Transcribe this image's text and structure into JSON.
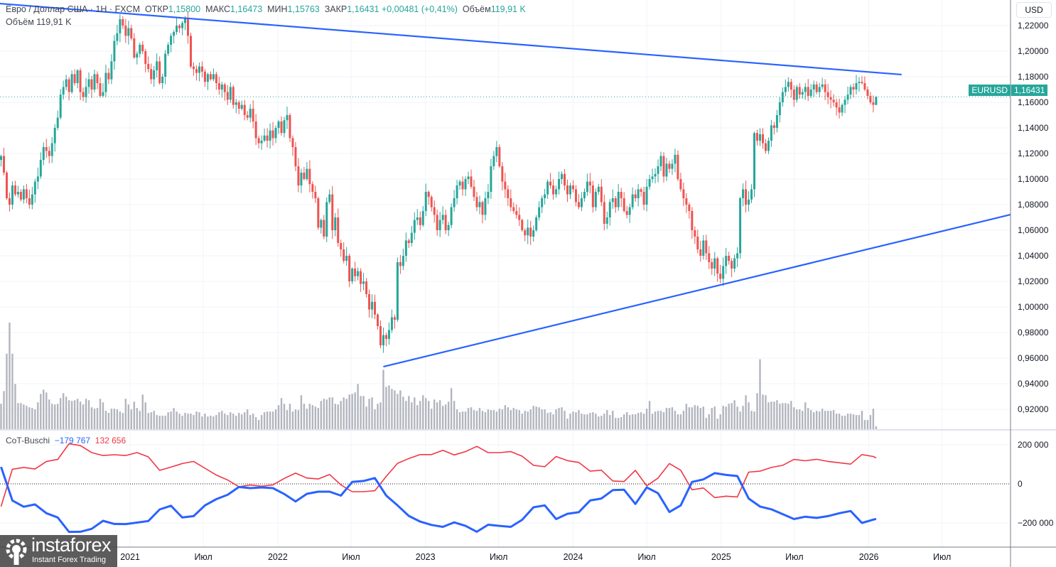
{
  "header": {
    "symbol": "Евро / Доллар США · 1Н · FXCM",
    "open_label": "ОТКР",
    "open": "1,15800",
    "high_label": "МАКС",
    "high": "1,16473",
    "low_label": "МИН",
    "low": "1,15763",
    "close_label": "ЗАКР",
    "close": "1,16431",
    "change": "+0,00481 (+0,41%)",
    "volume_label": "Объём",
    "volume": "119,91 K",
    "volume_line": "Объём  119,91 K"
  },
  "price_axis": {
    "currency_button": "USD",
    "labels": [
      "1,22000",
      "1,20000",
      "1,18000",
      "1,16000",
      "1,14000",
      "1,12000",
      "1,10000",
      "1,08000",
      "1,06000",
      "1,04000",
      "1,02000",
      "1,00000",
      "0,98000",
      "0,96000",
      "0,94000",
      "0,92000"
    ],
    "symbol_tag": "EURUSD",
    "last_price_tag": "1,16431"
  },
  "indicator": {
    "name": "CoT-Buschi",
    "value_blue": "−179 767",
    "value_red": "132 656",
    "axis_labels": [
      "200 000",
      "0",
      "−200 000"
    ]
  },
  "logo": {
    "brand": "instaforex",
    "tagline": "Instant Forex Trading"
  },
  "colors": {
    "up": "#26a69a",
    "down": "#ef5350",
    "trendline": "#2962ff",
    "volume": "#b2b5be",
    "cot_blue": "#2962ff",
    "cot_red": "#f23645",
    "grid": "#f0f3fa"
  },
  "chart_data": {
    "type": "candlestick",
    "interval": "1W",
    "instrument": "EURUSD",
    "ylim": [
      0.905,
      1.24
    ],
    "yticks": [
      1.22,
      1.2,
      1.18,
      1.16,
      1.14,
      1.12,
      1.1,
      1.08,
      1.06,
      1.04,
      1.02,
      1.0,
      0.98,
      0.96,
      0.94,
      0.92
    ],
    "grid": true,
    "x_ticks": [
      {
        "label": "2021",
        "date": "2021-01-01"
      },
      {
        "label": "Июл",
        "date": "2021-07-01"
      },
      {
        "label": "2022",
        "date": "2022-01-01"
      },
      {
        "label": "Июл",
        "date": "2022-07-01"
      },
      {
        "label": "2023",
        "date": "2023-01-01"
      },
      {
        "label": "Июл",
        "date": "2023-07-01"
      },
      {
        "label": "2024",
        "date": "2024-01-01"
      },
      {
        "label": "Июл",
        "date": "2024-07-01"
      },
      {
        "label": "2025",
        "date": "2025-01-01"
      },
      {
        "label": "Июл",
        "date": "2025-07-01"
      },
      {
        "label": "2026",
        "date": "2026-01-01"
      },
      {
        "label": "Июл",
        "date": "2026-07-01"
      }
    ],
    "candles": {
      "first_week": "2020-02-17",
      "first_open": 1.115,
      "last": {
        "open": 1.158,
        "high": 1.16473,
        "low": 1.15763,
        "close": 1.16431
      },
      "closes": [
        1.118,
        1.105,
        1.085,
        1.08,
        1.095,
        1.088,
        1.09,
        1.084,
        1.092,
        1.085,
        1.08,
        1.088,
        1.098,
        1.102,
        1.115,
        1.125,
        1.122,
        1.118,
        1.128,
        1.14,
        1.148,
        1.166,
        1.172,
        1.178,
        1.168,
        1.182,
        1.175,
        1.185,
        1.168,
        1.164,
        1.172,
        1.178,
        1.17,
        1.182,
        1.175,
        1.165,
        1.168,
        1.183,
        1.178,
        1.192,
        1.208,
        1.214,
        1.225,
        1.22,
        1.212,
        1.218,
        1.21,
        1.195,
        1.198,
        1.205,
        1.2,
        1.19,
        1.186,
        1.178,
        1.185,
        1.192,
        1.175,
        1.18,
        1.198,
        1.205,
        1.212,
        1.215,
        1.22,
        1.218,
        1.222,
        1.226,
        1.212,
        1.188,
        1.186,
        1.183,
        1.188,
        1.184,
        1.176,
        1.182,
        1.178,
        1.182,
        1.175,
        1.17,
        1.174,
        1.168,
        1.162,
        1.172,
        1.158,
        1.16,
        1.155,
        1.158,
        1.15,
        1.148,
        1.155,
        1.145,
        1.132,
        1.128,
        1.13,
        1.134,
        1.13,
        1.138,
        1.132,
        1.14,
        1.145,
        1.136,
        1.146,
        1.15,
        1.132,
        1.125,
        1.11,
        1.095,
        1.105,
        1.1,
        1.108,
        1.096,
        1.09,
        1.085,
        1.062,
        1.068,
        1.055,
        1.082,
        1.088,
        1.06,
        1.07,
        1.05,
        1.045,
        1.036,
        1.04,
        1.02,
        1.03,
        1.024,
        1.028,
        1.018,
        1.02,
        1.01,
        0.998,
        1.004,
        0.994,
        0.985,
        0.97,
        0.978,
        0.975,
        0.982,
        0.992,
        0.99,
        1.035,
        1.032,
        1.04,
        1.052,
        1.05,
        1.058,
        1.068,
        1.07,
        1.064,
        1.075,
        1.09,
        1.086,
        1.078,
        1.072,
        1.06,
        1.068,
        1.072,
        1.06,
        1.064,
        1.078,
        1.085,
        1.095,
        1.098,
        1.092,
        1.1,
        1.102,
        1.094,
        1.086,
        1.078,
        1.082,
        1.072,
        1.085,
        1.09,
        1.11,
        1.118,
        1.125,
        1.11,
        1.098,
        1.092,
        1.085,
        1.078,
        1.075,
        1.072,
        1.068,
        1.06,
        1.056,
        1.062,
        1.055,
        1.06,
        1.07,
        1.078,
        1.085,
        1.088,
        1.098,
        1.095,
        1.088,
        1.092,
        1.1,
        1.104,
        1.095,
        1.088,
        1.095,
        1.092,
        1.082,
        1.078,
        1.085,
        1.09,
        1.098,
        1.095,
        1.078,
        1.09,
        1.094,
        1.082,
        1.065,
        1.07,
        1.082,
        1.085,
        1.078,
        1.09,
        1.085,
        1.075,
        1.072,
        1.078,
        1.088,
        1.085,
        1.092,
        1.09,
        1.08,
        1.094,
        1.1,
        1.102,
        1.104,
        1.11,
        1.118,
        1.102,
        1.112,
        1.108,
        1.112,
        1.119,
        1.1,
        1.092,
        1.085,
        1.08,
        1.075,
        1.06,
        1.055,
        1.045,
        1.04,
        1.052,
        1.042,
        1.035,
        1.03,
        1.038,
        1.026,
        1.022,
        1.032,
        1.04,
        1.036,
        1.03,
        1.038,
        1.042,
        1.085,
        1.092,
        1.08,
        1.084,
        1.092,
        1.136,
        1.13,
        1.135,
        1.128,
        1.122,
        1.13,
        1.142,
        1.14,
        1.15,
        1.16,
        1.168,
        1.172,
        1.176,
        1.17,
        1.162,
        1.172,
        1.166,
        1.168,
        1.172,
        1.165,
        1.17,
        1.174,
        1.168,
        1.172,
        1.174,
        1.168,
        1.164,
        1.162,
        1.16,
        1.156,
        1.152,
        1.158,
        1.162,
        1.166,
        1.172,
        1.17,
        1.175,
        1.176,
        1.175,
        1.17,
        1.165,
        1.16,
        1.158,
        1.16431
      ],
      "volume_unit": "K",
      "volumes": [
        1080,
        1620,
        3210,
        4530,
        3210,
        1920,
        1110,
        1110,
        1050,
        990,
        930,
        900,
        840,
        1140,
        1500,
        1680,
        1560,
        1260,
        1080,
        1050,
        1080,
        1320,
        1530,
        1380,
        1230,
        1200,
        1230,
        1290,
        1170,
        1050,
        1290,
        1230,
        930,
        870,
        900,
        1290,
        1140,
        780,
        690,
        870,
        870,
        840,
        750,
        690,
        1290,
        1050,
        840,
        1170,
        900,
        780,
        1470,
        1140,
        690,
        720,
        780,
        600,
        570,
        570,
        570,
        720,
        750,
        900,
        750,
        660,
        570,
        690,
        660,
        660,
        600,
        750,
        720,
        540,
        660,
        540,
        570,
        540,
        600,
        720,
        780,
        660,
        600,
        720,
        660,
        570,
        690,
        630,
        720,
        840,
        600,
        660,
        510,
        390,
        600,
        720,
        750,
        750,
        750,
        840,
        1020,
        1320,
        1080,
        810,
        1080,
        750,
        840,
        810,
        1440,
        1080,
        870,
        1080,
        1020,
        960,
        900,
        1200,
        1290,
        1260,
        1350,
        1350,
        1080,
        1050,
        1200,
        1350,
        1290,
        1470,
        1500,
        1560,
        1920,
        1410,
        1410,
        960,
        1290,
        1350,
        840,
        1080,
        1140,
        2520,
        1800,
        1860,
        1710,
        1650,
        1500,
        1650,
        1380,
        1200,
        1410,
        1140,
        1350,
        1020,
        1200,
        1440,
        1320,
        1200,
        870,
        1260,
        1140,
        1230,
        990,
        1050,
        1170,
        1740,
        1200,
        840,
        720,
        750,
        750,
        900,
        930,
        810,
        780,
        900,
        780,
        720,
        840,
        810,
        810,
        750,
        870,
        840,
        1020,
        930,
        810,
        900,
        840,
        810,
        660,
        780,
        750,
        840,
        990,
        960,
        930,
        840,
        840,
        690,
        720,
        630,
        840,
        900,
        930,
        780,
        450,
        660,
        750,
        720,
        810,
        660,
        630,
        630,
        690,
        720,
        660,
        540,
        570,
        660,
        810,
        600,
        780,
        480,
        480,
        510,
        630,
        720,
        600,
        630,
        630,
        690,
        720,
        660,
        870,
        1200,
        660,
        750,
        780,
        780,
        720,
        900,
        900,
        930,
        780,
        630,
        630,
        780,
        1080,
        930,
        930,
        1020,
        990,
        900,
        960,
        480,
        630,
        900,
        960,
        450,
        630,
        990,
        960,
        1080,
        1110,
        1230,
        960,
        750,
        990,
        1440,
        1140,
        780,
        750,
        1530,
        2970,
        1470,
        1440,
        1140,
        1170,
        1170,
        1230,
        1080,
        1110,
        1110,
        1080,
        1200,
        930,
        840,
        840,
        780,
        1140,
        900,
        810,
        720,
        780,
        750,
        870,
        780,
        780,
        780,
        810,
        660,
        660,
        570,
        570,
        660,
        660,
        630,
        600,
        600,
        780,
        390,
        390,
        600,
        870,
        119.91
      ]
    },
    "trendlines": [
      {
        "from": {
          "date": "2020-02-14",
          "price": 1.2372
        },
        "to": {
          "date": "2026-03-23",
          "price": 1.1817
        }
      },
      {
        "from": {
          "date": "2022-09-19",
          "price": 0.9533
        },
        "to": {
          "date": "2026-12-17",
          "price": 1.0722
        }
      }
    ],
    "last_price": 1.16431,
    "cot": {
      "ylim": [
        -290000,
        260000
      ],
      "yticks": [
        200000,
        0,
        -200000
      ],
      "series_colors": [
        "blue",
        "red"
      ],
      "points": [
        [
          "2020-02-17",
          87000,
          -116000
        ],
        [
          "2020-03-16",
          -85000,
          75000
        ],
        [
          "2020-04-13",
          -117000,
          84000
        ],
        [
          "2020-05-11",
          -105000,
          76000
        ],
        [
          "2020-06-08",
          -150000,
          115000
        ],
        [
          "2020-07-06",
          -172000,
          125000
        ],
        [
          "2020-08-03",
          -246000,
          205000
        ],
        [
          "2020-08-31",
          -245000,
          196000
        ],
        [
          "2020-09-28",
          -230000,
          160000
        ],
        [
          "2020-10-26",
          -189000,
          145000
        ],
        [
          "2020-11-23",
          -205000,
          149000
        ],
        [
          "2020-12-21",
          -206000,
          145000
        ],
        [
          "2021-01-18",
          -198000,
          160000
        ],
        [
          "2021-02-15",
          -190000,
          138000
        ],
        [
          "2021-03-15",
          -131000,
          69000
        ],
        [
          "2021-04-12",
          -112000,
          86000
        ],
        [
          "2021-05-10",
          -172000,
          104000
        ],
        [
          "2021-06-07",
          -165000,
          115000
        ],
        [
          "2021-07-05",
          -110000,
          80000
        ],
        [
          "2021-08-02",
          -78000,
          45000
        ],
        [
          "2021-08-30",
          -56000,
          20000
        ],
        [
          "2021-09-27",
          -16000,
          -15000
        ],
        [
          "2021-10-25",
          -22000,
          -6000
        ],
        [
          "2021-11-22",
          -18000,
          -12000
        ],
        [
          "2021-12-20",
          -22000,
          -5000
        ],
        [
          "2022-01-17",
          -52000,
          28000
        ],
        [
          "2022-02-14",
          -90000,
          55000
        ],
        [
          "2022-03-14",
          -51000,
          30000
        ],
        [
          "2022-04-11",
          -40000,
          25000
        ],
        [
          "2022-05-09",
          -40000,
          48000
        ],
        [
          "2022-06-06",
          -60000,
          -5000
        ],
        [
          "2022-07-04",
          10000,
          -40000
        ],
        [
          "2022-08-01",
          15000,
          -40000
        ],
        [
          "2022-08-29",
          30000,
          -35000
        ],
        [
          "2022-09-26",
          -60000,
          38000
        ],
        [
          "2022-10-24",
          -110000,
          105000
        ],
        [
          "2022-11-21",
          -164000,
          130000
        ],
        [
          "2022-12-19",
          -193000,
          150000
        ],
        [
          "2023-01-16",
          -210000,
          150000
        ],
        [
          "2023-02-13",
          -220000,
          172000
        ],
        [
          "2023-03-13",
          -197000,
          148000
        ],
        [
          "2023-04-10",
          -215000,
          165000
        ],
        [
          "2023-05-08",
          -245000,
          192000
        ],
        [
          "2023-06-05",
          -209000,
          160000
        ],
        [
          "2023-07-03",
          -215000,
          160000
        ],
        [
          "2023-07-31",
          -220000,
          165000
        ],
        [
          "2023-08-28",
          -184000,
          142000
        ],
        [
          "2023-09-25",
          -120000,
          95000
        ],
        [
          "2023-10-23",
          -110000,
          88000
        ],
        [
          "2023-11-20",
          -180000,
          140000
        ],
        [
          "2023-12-18",
          -153000,
          119000
        ],
        [
          "2024-01-15",
          -145000,
          110000
        ],
        [
          "2024-02-12",
          -85000,
          65000
        ],
        [
          "2024-03-11",
          -75000,
          70000
        ],
        [
          "2024-04-08",
          -32000,
          15000
        ],
        [
          "2024-05-06",
          -30000,
          12000
        ],
        [
          "2024-06-03",
          -103000,
          69000
        ],
        [
          "2024-07-01",
          -18000,
          -10000
        ],
        [
          "2024-07-29",
          -48000,
          30000
        ],
        [
          "2024-08-26",
          -144000,
          104000
        ],
        [
          "2024-09-23",
          -110000,
          70000
        ],
        [
          "2024-10-21",
          10000,
          -30000
        ],
        [
          "2024-11-18",
          23000,
          -21000
        ],
        [
          "2024-12-16",
          55000,
          -70000
        ],
        [
          "2025-01-13",
          46000,
          -63000
        ],
        [
          "2025-02-10",
          40000,
          -67000
        ],
        [
          "2025-03-10",
          -75000,
          60000
        ],
        [
          "2025-04-07",
          -116000,
          65000
        ],
        [
          "2025-05-05",
          -130000,
          84000
        ],
        [
          "2025-06-02",
          -155000,
          95000
        ],
        [
          "2025-06-30",
          -180000,
          125000
        ],
        [
          "2025-07-28",
          -168000,
          118000
        ],
        [
          "2025-08-25",
          -174000,
          126000
        ],
        [
          "2025-09-22",
          -165000,
          115000
        ],
        [
          "2025-10-20",
          -150000,
          108000
        ],
        [
          "2025-11-17",
          -139000,
          101000
        ],
        [
          "2025-12-15",
          -200000,
          150000
        ],
        [
          "2026-01-12",
          -183000,
          140000
        ],
        [
          "2026-01-19",
          -179767,
          132656
        ]
      ]
    }
  }
}
